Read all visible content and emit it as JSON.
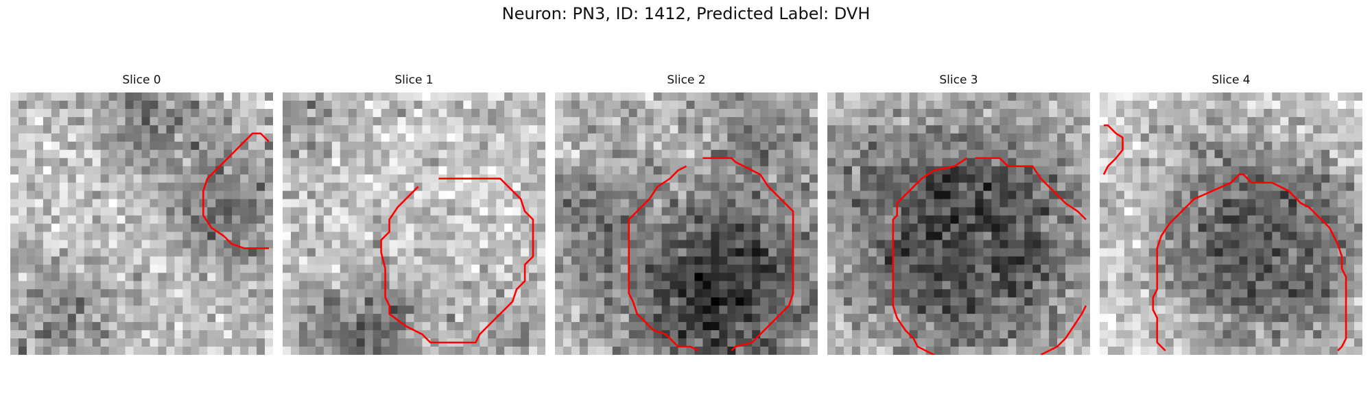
{
  "figure": {
    "title": "Neuron: PN3, ID: 1412, Predicted Label: DVH",
    "colors": {
      "contour": "#ff0000"
    }
  },
  "panels": [
    {
      "title": "Slice 0",
      "darkness": "low-center"
    },
    {
      "title": "Slice 1",
      "darkness": "dark-lower-left"
    },
    {
      "title": "Slice 2",
      "darkness": "dark-center"
    },
    {
      "title": "Slice 3",
      "darkness": "dark-center-large"
    },
    {
      "title": "Slice 4",
      "darkness": "dark-right"
    }
  ]
}
